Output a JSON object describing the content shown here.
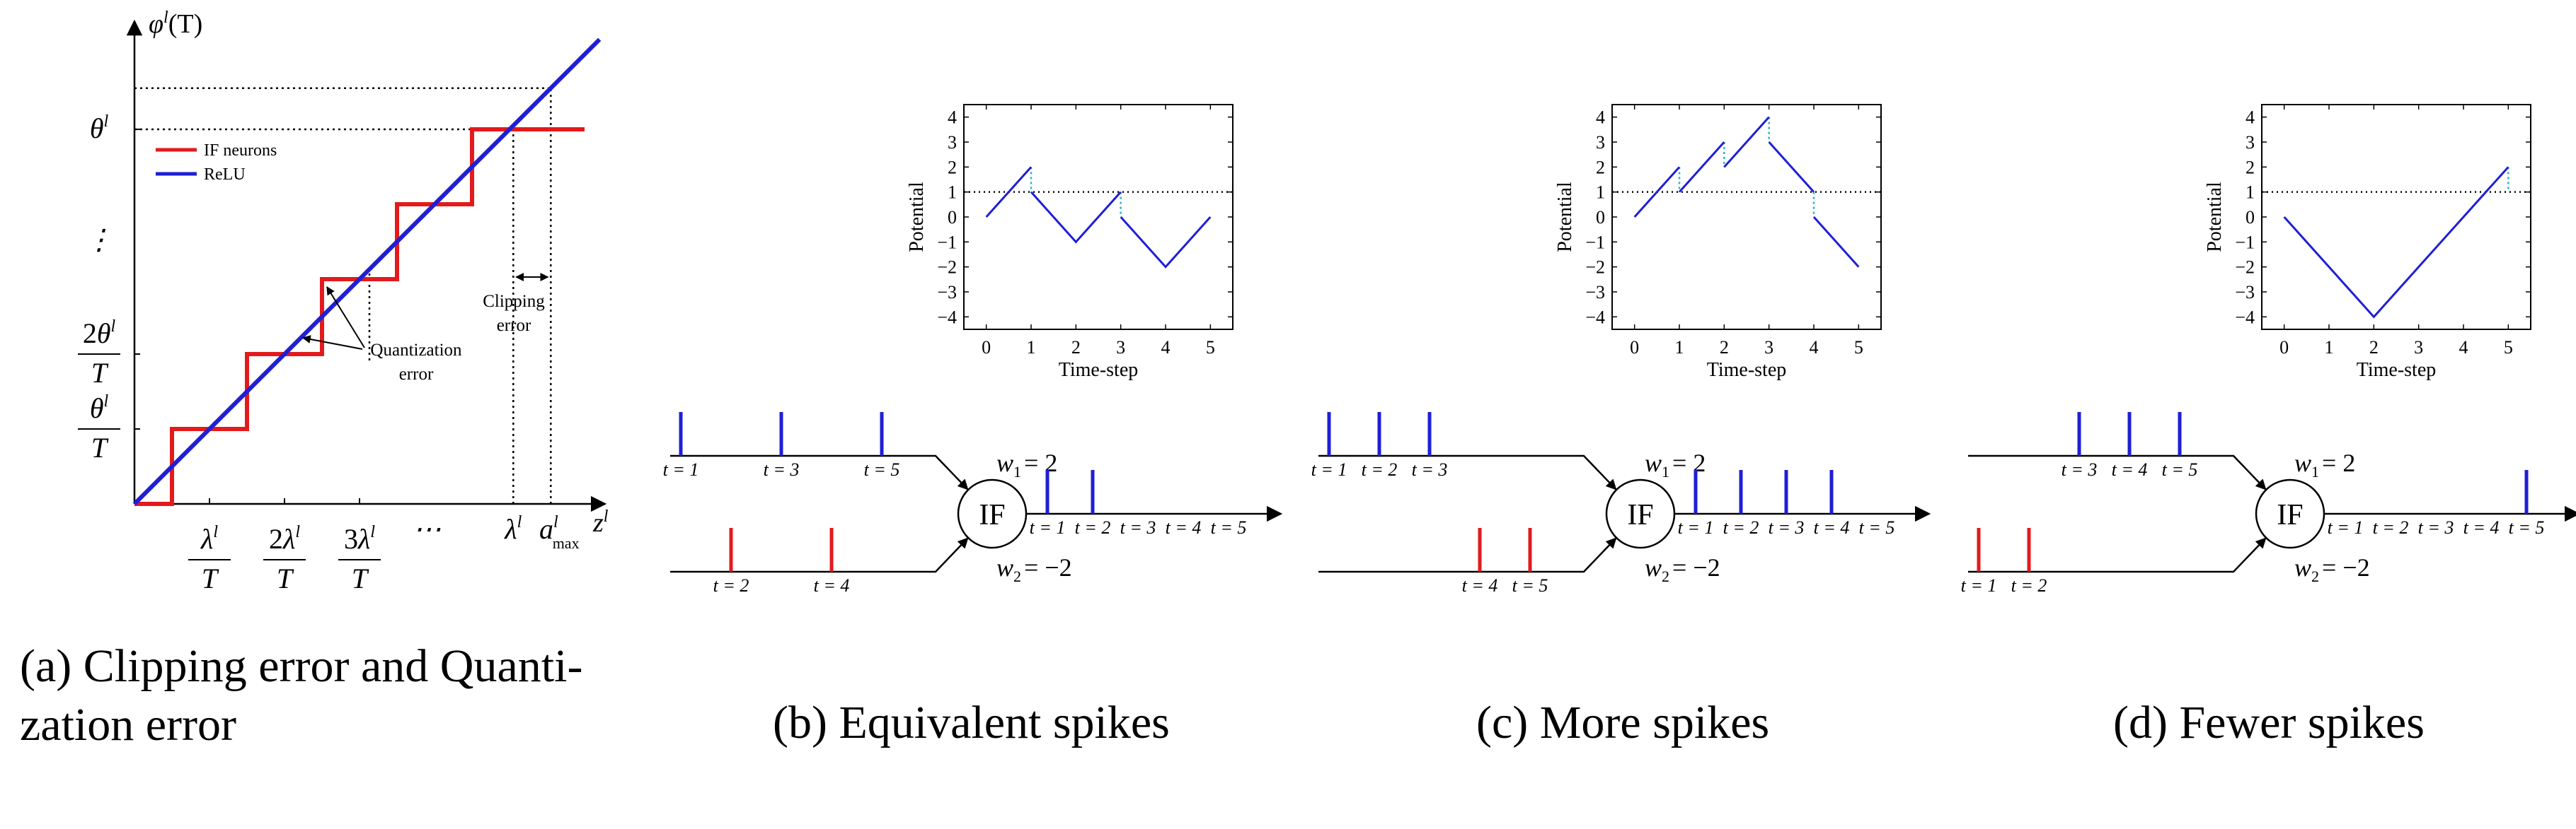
{
  "chart_data": [
    {
      "type": "line",
      "panel": "a",
      "caption": "(a) Clipping error and Quantization error",
      "caption_lines": [
        "(a) Clipping error and Quanti-",
        "zation error"
      ],
      "xlabel": "z",
      "ylabel": "φ(T)",
      "superscript": "l",
      "x_tick_labels": [
        {
          "num": "λ",
          "den": "T",
          "coef": ""
        },
        {
          "num": "λ",
          "den": "T",
          "coef": "2"
        },
        {
          "num": "λ",
          "den": "T",
          "coef": "3"
        },
        {
          "num": "⋯",
          "den": "",
          "coef": ""
        },
        {
          "num": "λ",
          "den": "",
          "coef": ""
        },
        {
          "num": "a",
          "den": "",
          "coef": "",
          "sub": "max"
        }
      ],
      "y_tick_labels": [
        {
          "num": "θ",
          "den": "T",
          "coef": ""
        },
        {
          "num": "θ",
          "den": "T",
          "coef": "2"
        },
        {
          "num": "⋮",
          "den": "",
          "coef": ""
        },
        {
          "num": "θ",
          "den": "",
          "coef": ""
        }
      ],
      "series": [
        {
          "name": "IF neurons",
          "color": "#e31a1c",
          "x": [
            0,
            0.5,
            0.5,
            1.5,
            1.5,
            2.5,
            2.5,
            3.5,
            3.5,
            4.5,
            4.5,
            6.0
          ],
          "y": [
            0,
            0,
            1,
            1,
            2,
            2,
            3,
            3,
            4,
            4,
            5,
            5
          ]
        },
        {
          "name": "ReLU",
          "color": "#1f1fd6",
          "x": [
            0,
            6.2
          ],
          "y": [
            0,
            6.2
          ]
        }
      ],
      "annotations": [
        {
          "text_lines": [
            "Quantization",
            "error"
          ]
        },
        {
          "text_lines": [
            "Clipping",
            "error"
          ]
        }
      ],
      "legend_placement": "top-left"
    },
    {
      "type": "line",
      "panel": "b",
      "caption": "(b) Equivalent spikes",
      "xlabel": "Time-step",
      "ylabel": "Potential",
      "x_ticks": [
        0,
        1,
        2,
        3,
        4,
        5
      ],
      "y_ticks": [
        -4,
        -3,
        -2,
        -1,
        0,
        1,
        2,
        3,
        4
      ],
      "xlim": [
        -0.5,
        5.5
      ],
      "ylim": [
        -4.5,
        4.5
      ],
      "threshold": 1,
      "series": [
        {
          "name": "",
          "color": "#1f1fd6",
          "x": [
            0,
            1
          ],
          "y": [
            0,
            2
          ]
        },
        {
          "name": "",
          "color": "#1f1fd6",
          "x": [
            1,
            2,
            3
          ],
          "y": [
            1,
            -1,
            1
          ]
        },
        {
          "name": "",
          "color": "#1f1fd6",
          "x": [
            3,
            4,
            5
          ],
          "y": [
            0,
            -2,
            0
          ]
        }
      ],
      "resets": [
        {
          "x": 1,
          "from": 2,
          "to": 1
        },
        {
          "x": 3,
          "from": 1,
          "to": 0
        }
      ],
      "neuron": {
        "label": "IF",
        "w1_sym": "w",
        "w1_sub": "1",
        "w1_val": "= 2",
        "w2_sym": "w",
        "w2_sub": "2",
        "w2_val": "= −2"
      },
      "input1_spikes": [
        1,
        3,
        5
      ],
      "input2_spikes": [
        2,
        4
      ],
      "output_spikes": [
        1,
        2
      ],
      "input1_labels": [
        "t = 1",
        "t = 3",
        "t = 5"
      ],
      "input2_labels": [
        "t = 2",
        "t = 4"
      ],
      "output_labels": [
        "t = 1",
        "t = 2",
        "t = 3",
        "t = 4",
        "t = 5"
      ]
    },
    {
      "type": "line",
      "panel": "c",
      "caption": "(c) More spikes",
      "xlabel": "Time-step",
      "ylabel": "Potential",
      "x_ticks": [
        0,
        1,
        2,
        3,
        4,
        5
      ],
      "y_ticks": [
        -4,
        -3,
        -2,
        -1,
        0,
        1,
        2,
        3,
        4
      ],
      "xlim": [
        -0.5,
        5.5
      ],
      "ylim": [
        -4.5,
        4.5
      ],
      "threshold": 1,
      "series": [
        {
          "name": "",
          "color": "#1f1fd6",
          "x": [
            0,
            1
          ],
          "y": [
            0,
            2
          ]
        },
        {
          "name": "",
          "color": "#1f1fd6",
          "x": [
            1,
            2
          ],
          "y": [
            1,
            3
          ]
        },
        {
          "name": "",
          "color": "#1f1fd6",
          "x": [
            2,
            3
          ],
          "y": [
            2,
            4
          ]
        },
        {
          "name": "",
          "color": "#1f1fd6",
          "x": [
            3,
            4
          ],
          "y": [
            3,
            1
          ]
        },
        {
          "name": "",
          "color": "#1f1fd6",
          "x": [
            4,
            5
          ],
          "y": [
            0,
            -2
          ]
        }
      ],
      "resets": [
        {
          "x": 1,
          "from": 2,
          "to": 1
        },
        {
          "x": 2,
          "from": 3,
          "to": 2
        },
        {
          "x": 3,
          "from": 4,
          "to": 3
        },
        {
          "x": 4,
          "from": 1,
          "to": 0
        }
      ],
      "neuron": {
        "label": "IF",
        "w1_sym": "w",
        "w1_sub": "1",
        "w1_val": "= 2",
        "w2_sym": "w",
        "w2_sub": "2",
        "w2_val": "= −2"
      },
      "input1_spikes": [
        1,
        2,
        3
      ],
      "input2_spikes": [
        4,
        5
      ],
      "output_spikes": [
        1,
        2,
        3,
        4
      ],
      "input1_labels": [
        "t = 1",
        "t = 2",
        "t = 3"
      ],
      "input2_labels": [
        "t = 4",
        "t = 5"
      ],
      "output_labels": [
        "t = 1",
        "t = 2",
        "t = 3",
        "t = 4",
        "t = 5"
      ]
    },
    {
      "type": "line",
      "panel": "d",
      "caption": "(d) Fewer spikes",
      "xlabel": "Time-step",
      "ylabel": "Potential",
      "x_ticks": [
        0,
        1,
        2,
        3,
        4,
        5
      ],
      "y_ticks": [
        -4,
        -3,
        -2,
        -1,
        0,
        1,
        2,
        3,
        4
      ],
      "xlim": [
        -0.5,
        5.5
      ],
      "ylim": [
        -4.5,
        4.5
      ],
      "threshold": 1,
      "series": [
        {
          "name": "",
          "color": "#1f1fd6",
          "x": [
            0,
            2,
            5
          ],
          "y": [
            0,
            -4,
            2
          ]
        }
      ],
      "resets": [
        {
          "x": 5,
          "from": 2,
          "to": 1
        }
      ],
      "neuron": {
        "label": "IF",
        "w1_sym": "w",
        "w1_sub": "1",
        "w1_val": "= 2",
        "w2_sym": "w",
        "w2_sub": "2",
        "w2_val": "= −2"
      },
      "input1_spikes": [
        3,
        4,
        5
      ],
      "input2_spikes": [
        1,
        2
      ],
      "output_spikes": [
        5
      ],
      "input1_labels": [
        "t = 3",
        "t = 4",
        "t = 5"
      ],
      "input2_labels": [
        "t = 1",
        "t = 2"
      ],
      "output_labels": [
        "t = 1",
        "t = 2",
        "t = 3",
        "t = 4",
        "t = 5"
      ]
    }
  ],
  "colors": {
    "blue": "#1f1fd6",
    "red": "#e31a1c",
    "reset": "#2bb3c0"
  }
}
